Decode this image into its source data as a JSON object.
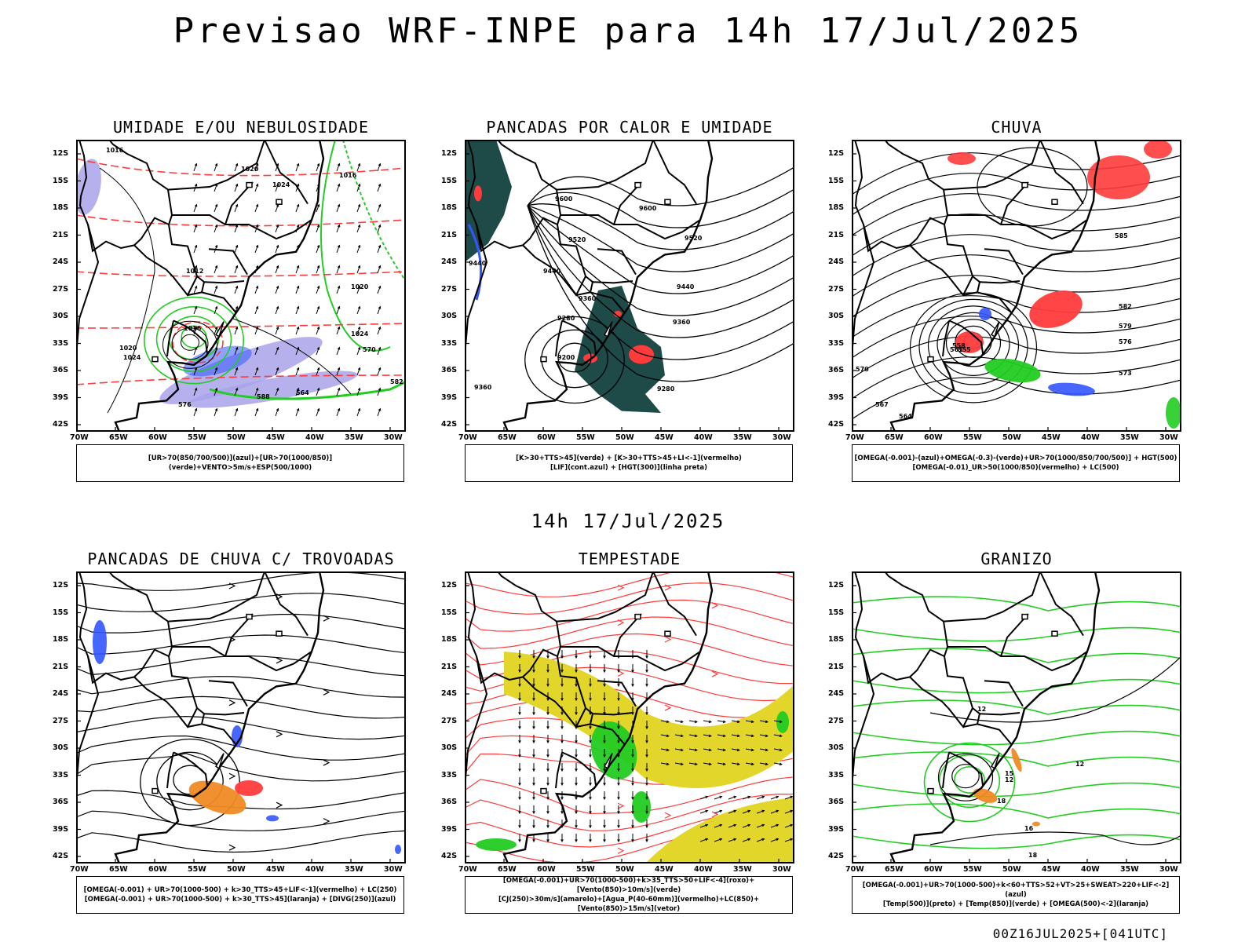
{
  "header": {
    "title": "Previsao WRF-INPE  para 14h 17/Jul/2025",
    "mid_title": "14h 17/Jul/2025",
    "footer": "00Z16JUL2025+[041UTC]"
  },
  "axes": {
    "lat_labels": [
      "12S",
      "15S",
      "18S",
      "21S",
      "24S",
      "27S",
      "30S",
      "33S",
      "36S",
      "39S",
      "42S"
    ],
    "lon_labels": [
      "70W",
      "65W",
      "60W",
      "55W",
      "50W",
      "45W",
      "40W",
      "35W",
      "30W"
    ]
  },
  "colors": {
    "red": "#ff3b3b",
    "green": "#22cc22",
    "blue": "#3355ff",
    "lavender": "#a9a3ea",
    "dark_teal": "#1e4a48",
    "yellow": "#e3d62a",
    "orange": "#f08a24",
    "black": "#000000"
  },
  "panels": [
    {
      "title": "UMIDADE E/OU NEBULOSIDADE",
      "legend": [
        "[UR>70(850/700/500)](azul)+[UR>70(1000/850)](verde)+VENTO>5m/s+ESP(500/1000)"
      ],
      "contour_labels": [
        "1016",
        "1020",
        "1024",
        "1012",
        "1016",
        "1020",
        "1024",
        "570",
        "576",
        "582",
        "564",
        "588",
        "1016",
        "1020",
        "1024"
      ]
    },
    {
      "title": "PANCADAS POR CALOR E UMIDADE",
      "legend": [
        "[K>30+TTS>45](verde) + [K>30+TTS>45+LI<-1](vermelho)",
        "[LIF](cont.azul) + [HGT(300)](linha preta)"
      ],
      "contour_labels": [
        "9600",
        "9520",
        "9440",
        "9360",
        "9280",
        "9200",
        "9600",
        "9520",
        "9440",
        "9360",
        "9280",
        "9360",
        "9440"
      ]
    },
    {
      "title": "CHUVA",
      "legend": [
        "[OMEGA(-0.001)-(azul)+OMEGA(-0.3)-(verde)+UR>70(1000/850/700/500)] + HGT(500)",
        "[OMEGA(-0.01)_UR>50(1000/850)(vermelho) + LC(500)"
      ],
      "contour_labels": [
        "585",
        "582",
        "579",
        "576",
        "573",
        "570",
        "567",
        "564",
        "561",
        "558",
        "555"
      ]
    },
    {
      "title": "PANCADAS DE CHUVA C/ TROVOADAS",
      "legend": [
        "[OMEGA(-0.001) + UR>70(1000-500) + k>30_TTS>45+LIF<-1](vermelho) + LC(250)",
        "[OMEGA(-0.001) + UR>70(1000-500) + k>30_TTS>45](laranja) + [DIVG(250)](azul)"
      ],
      "contour_labels": []
    },
    {
      "title": "TEMPESTADE",
      "legend": [
        "[OMEGA(-0.001)+UR>70(1000-500)+k>35_TTS>50+LIF<-4](roxo)+[Vento(850)>10m/s](verde)",
        "[CJ(250)>30m/s](amarelo)+[Agua_P(40-60mm)](vermelho)+LC(850)+[Vento(850)>15m/s](vetor)"
      ],
      "contour_labels": []
    },
    {
      "title": "GRANIZO",
      "legend": [
        "[OMEGA(-0.001)+UR>70(1000-500)+k<60+TTS>52+VT>25+SWEAT>220+LIF<-2](azul)",
        "[Temp(500)](preto) + [Temp(850)](verde) + [OMEGA(500)<-2](laranja)"
      ],
      "contour_labels": [
        "12",
        "12",
        "12",
        "15",
        "18",
        "16",
        "18"
      ]
    }
  ]
}
